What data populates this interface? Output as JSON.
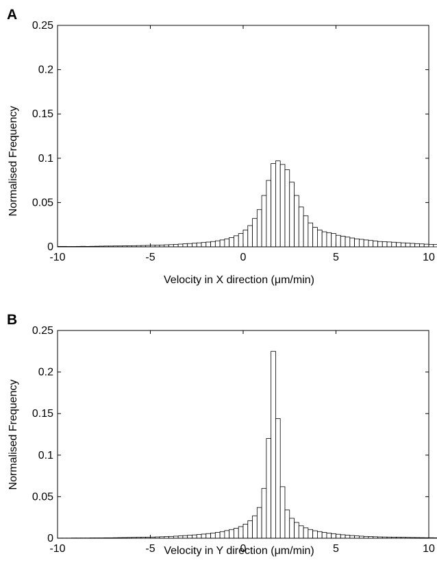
{
  "chart_data": [
    {
      "panel_label": "A",
      "type": "bar",
      "histogram": true,
      "xlabel": "Velocity in X direction (μm/min)",
      "ylabel": "Normalised Frequency",
      "xlim": [
        -10,
        10
      ],
      "ylim": [
        0,
        0.25
      ],
      "xticks": [
        "-10",
        "-5",
        "0",
        "5",
        "10"
      ],
      "yticks": [
        "0",
        "0.05",
        "0.1",
        "0.15",
        "0.2",
        "0.25"
      ],
      "grid": false,
      "bin_width": 0.25,
      "bin_start": -10,
      "values": [
        0.0005,
        0.0005,
        0.0004,
        0.0004,
        0.0005,
        0.0006,
        0.0005,
        0.0006,
        0.0007,
        0.0008,
        0.0009,
        0.0009,
        0.001,
        0.001,
        0.0011,
        0.0012,
        0.0013,
        0.0014,
        0.0015,
        0.0016,
        0.0018,
        0.0019,
        0.0021,
        0.0023,
        0.0025,
        0.0028,
        0.0031,
        0.0034,
        0.0037,
        0.0041,
        0.0045,
        0.0049,
        0.0054,
        0.006,
        0.0068,
        0.0078,
        0.009,
        0.0105,
        0.0125,
        0.015,
        0.019,
        0.024,
        0.032,
        0.042,
        0.058,
        0.075,
        0.094,
        0.097,
        0.093,
        0.087,
        0.073,
        0.058,
        0.045,
        0.035,
        0.027,
        0.022,
        0.019,
        0.017,
        0.016,
        0.015,
        0.013,
        0.012,
        0.011,
        0.01,
        0.009,
        0.0085,
        0.0078,
        0.0072,
        0.0066,
        0.006,
        0.0058,
        0.0055,
        0.0052,
        0.0048,
        0.0045,
        0.0042,
        0.0039,
        0.0036,
        0.0033,
        0.003,
        0.0028,
        0.0026,
        0.0024,
        0.0022,
        0.002,
        0.0018,
        0.0016,
        0.0014,
        0.0012,
        0.001,
        0.0009,
        0.0008,
        0.0007,
        0.0006,
        0.0005,
        0.0004,
        0.0003,
        0.0002,
        0.0002,
        0.0001
      ]
    },
    {
      "panel_label": "B",
      "type": "bar",
      "histogram": true,
      "xlabel": "Velocity in Y direction (μm/min)",
      "ylabel": "Normalised Frequency",
      "xlim": [
        -10,
        10
      ],
      "ylim": [
        0,
        0.25
      ],
      "xticks": [
        "-10",
        "-5",
        "0",
        "5",
        "10"
      ],
      "yticks": [
        "0",
        "0.05",
        "0.1",
        "0.15",
        "0.2",
        "0.25"
      ],
      "grid": false,
      "bin_width": 0.25,
      "bin_start": -10,
      "values": [
        0.0002,
        0.0002,
        0.0002,
        0.0003,
        0.0003,
        0.0003,
        0.0003,
        0.0004,
        0.0004,
        0.0004,
        0.0005,
        0.0005,
        0.0006,
        0.0007,
        0.0008,
        0.0009,
        0.001,
        0.0011,
        0.0012,
        0.0013,
        0.0014,
        0.0016,
        0.0018,
        0.002,
        0.0022,
        0.0025,
        0.0028,
        0.0032,
        0.0036,
        0.004,
        0.0045,
        0.005,
        0.0056,
        0.0063,
        0.0071,
        0.008,
        0.0092,
        0.0105,
        0.012,
        0.014,
        0.017,
        0.021,
        0.027,
        0.037,
        0.06,
        0.12,
        0.225,
        0.144,
        0.062,
        0.034,
        0.024,
        0.019,
        0.015,
        0.0125,
        0.0105,
        0.009,
        0.008,
        0.007,
        0.0062,
        0.0055,
        0.0048,
        0.0042,
        0.0037,
        0.0032,
        0.0028,
        0.0025,
        0.0022,
        0.002,
        0.0018,
        0.0016,
        0.0015,
        0.0014,
        0.0013,
        0.0012,
        0.0011,
        0.001,
        0.0009,
        0.0008,
        0.0007,
        0.0006,
        0.0006,
        0.0005,
        0.0005,
        0.0004,
        0.0004,
        0.0003,
        0.0003,
        0.0003,
        0.0002,
        0.0002,
        0.0002,
        0.0002,
        0.0002,
        0.0001,
        0.0001,
        0.0001,
        0.0001,
        0.0001,
        0.0001,
        0.0001
      ]
    }
  ]
}
